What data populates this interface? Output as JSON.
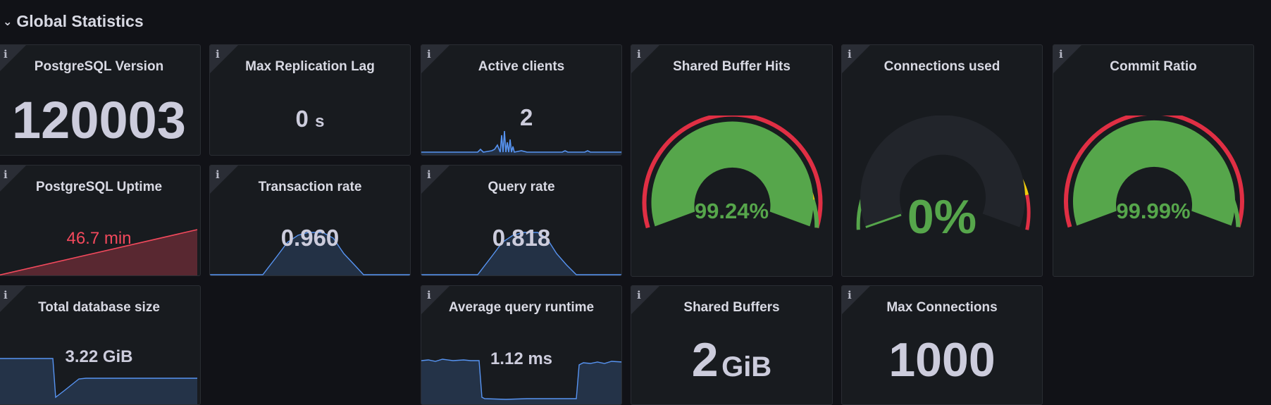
{
  "row": {
    "title": "Global Statistics"
  },
  "info_glyph": "i",
  "panels": {
    "pg_version": {
      "title": "PostgreSQL Version",
      "value": "120003"
    },
    "max_repl_lag": {
      "title": "Max Replication Lag",
      "value": "0",
      "unit": "s"
    },
    "active_clients": {
      "title": "Active clients",
      "value": "2"
    },
    "shared_buffer_hits": {
      "title": "Shared Buffer Hits",
      "value": "99.24%",
      "fraction": 0.9924
    },
    "connections_used": {
      "title": "Connections used",
      "value": "0%",
      "fraction": 0.0
    },
    "commit_ratio": {
      "title": "Commit Ratio",
      "value": "99.99%",
      "fraction": 0.9999
    },
    "pg_uptime": {
      "title": "PostgreSQL Uptime",
      "value": "46.7 min"
    },
    "transaction_rate": {
      "title": "Transaction rate",
      "value": "0.960"
    },
    "query_rate": {
      "title": "Query rate",
      "value": "0.818"
    },
    "total_db_size": {
      "title": "Total database size",
      "value": "3.22 GiB"
    },
    "avg_query_runtime": {
      "title": "Average query runtime",
      "value": "1.12 ms"
    },
    "shared_buffers": {
      "title": "Shared Buffers",
      "value": "2",
      "unit": "GiB"
    },
    "max_connections": {
      "title": "Max Connections",
      "value": "1000"
    }
  },
  "colors": {
    "ok": "#56a64b",
    "warn": "#f2cc0c",
    "crit": "#e02f44",
    "series": "#5794f2",
    "uptime_red": "#f2495c"
  }
}
